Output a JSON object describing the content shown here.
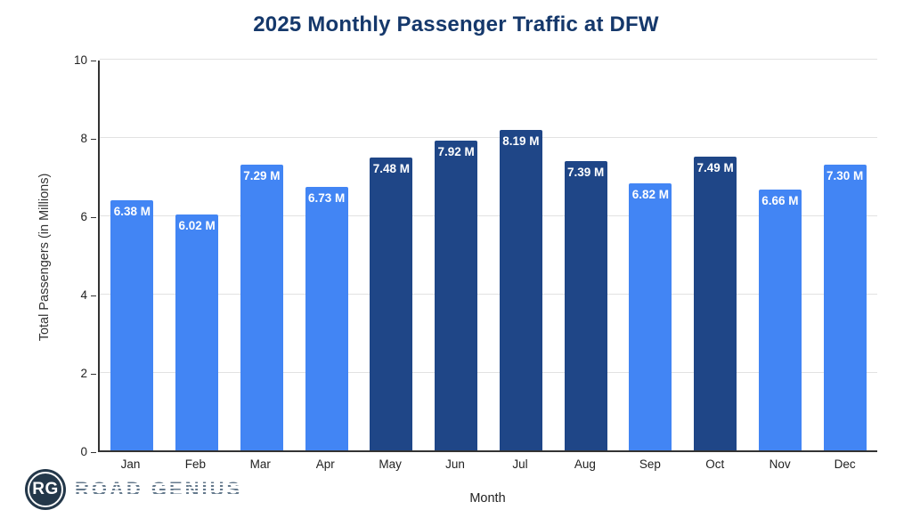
{
  "title": "2025 Monthly Passenger Traffic at DFW",
  "chart_data": {
    "type": "bar",
    "title": "2025 Monthly Passenger Traffic at DFW",
    "xlabel": "Month",
    "ylabel": "Total Passengers (in Millions)",
    "ylim": [
      0,
      10
    ],
    "yticks": [
      0,
      2,
      4,
      6,
      8,
      10
    ],
    "grid": "horizontal",
    "legend": "none",
    "categories": [
      "Jan",
      "Feb",
      "Mar",
      "Apr",
      "May",
      "Jun",
      "Jul",
      "Aug",
      "Sep",
      "Oct",
      "Nov",
      "Dec"
    ],
    "values": [
      6.38,
      6.02,
      7.29,
      6.73,
      7.48,
      7.92,
      8.19,
      7.39,
      6.82,
      7.49,
      6.66,
      7.3
    ],
    "value_labels": [
      "6.38 M",
      "6.02 M",
      "7.29 M",
      "6.73 M",
      "7.48 M",
      "7.92 M",
      "8.19 M",
      "7.39 M",
      "6.82 M",
      "7.49 M",
      "6.66 M",
      "7.30 M"
    ],
    "bar_colors": [
      "light",
      "light",
      "light",
      "light",
      "dark",
      "dark",
      "dark",
      "dark",
      "light",
      "dark",
      "light",
      "light"
    ]
  },
  "logo": {
    "initials": "RG",
    "name": "ROAD GENIUS"
  },
  "colors": {
    "light_bar": "#4285F4",
    "dark_bar": "#1F4687",
    "title": "#15386B",
    "axis": "#333333",
    "grid": "#E2E2E2",
    "bar_label_text": "#FFFFFF",
    "tick_text": "#222222",
    "logo_circle": "#24384A",
    "logo_text": "#64798C"
  }
}
